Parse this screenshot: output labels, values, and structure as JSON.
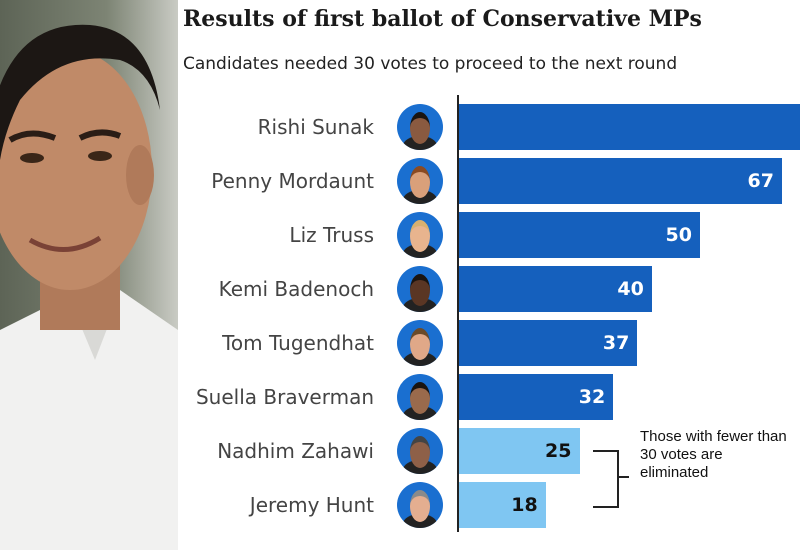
{
  "chart_data": {
    "type": "bar",
    "orientation": "horizontal",
    "title": "Results of first ballot of Conservative MPs",
    "subtitle": "Candidates needed 30 votes to proceed to the next round",
    "categories": [
      "Rishi Sunak",
      "Penny Mordaunt",
      "Liz Truss",
      "Kemi Badenoch",
      "Tom Tugendhat",
      "Suella Braverman",
      "Nadhim Zahawi",
      "Jeremy Hunt"
    ],
    "values": [
      88,
      67,
      50,
      40,
      37,
      32,
      25,
      18
    ],
    "value_labels": [
      "",
      "67",
      "50",
      "40",
      "37",
      "32",
      "25",
      "18"
    ],
    "eliminated": [
      false,
      false,
      false,
      false,
      false,
      false,
      true,
      true
    ],
    "threshold": 30,
    "annotation": [
      "Those with fewer than",
      "30 votes are eliminated"
    ],
    "xlabel": "",
    "ylabel": "",
    "grid": false,
    "colors": {
      "proceed": "#1560bd",
      "eliminated": "#7fc6f2"
    }
  }
}
